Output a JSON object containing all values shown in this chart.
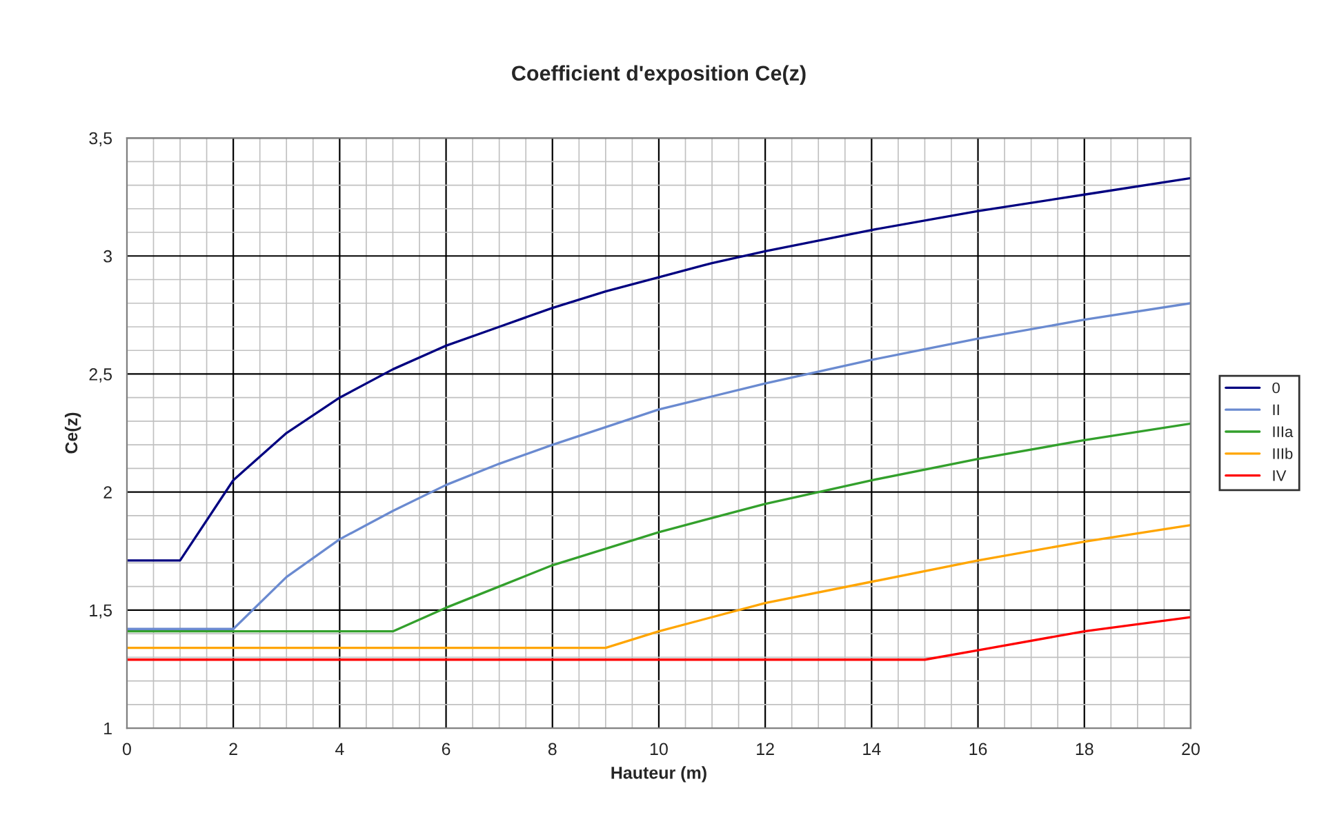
{
  "chart_data": {
    "type": "line",
    "title": "Coefficient d'exposition Ce(z)",
    "xlabel": "Hauteur (m)",
    "ylabel": "Ce(z)",
    "xlim": [
      0,
      20
    ],
    "xticks": [
      0,
      2,
      4,
      6,
      8,
      10,
      12,
      14,
      16,
      18,
      20
    ],
    "ylim": [
      1,
      3.5
    ],
    "yticks": [
      1,
      {
        "value": 1.5,
        "label": "1,5"
      },
      2,
      {
        "value": 2.5,
        "label": "2,5"
      },
      3,
      {
        "value": 3.5,
        "label": "3,5"
      }
    ],
    "grid": true,
    "legend": "right",
    "marker": "none",
    "line_style": "solid",
    "series": [
      {
        "name": "0",
        "color": "#000080",
        "x": [
          0,
          1,
          2,
          3,
          4,
          5,
          6,
          7,
          8,
          9,
          10,
          11,
          12,
          14,
          16,
          18,
          20
        ],
        "values": [
          1.71,
          1.71,
          2.05,
          2.25,
          2.4,
          2.52,
          2.62,
          2.7,
          2.78,
          2.85,
          2.91,
          2.97,
          3.02,
          3.11,
          3.19,
          3.26,
          3.33
        ]
      },
      {
        "name": "II",
        "color": "#6a8ad0",
        "x": [
          0,
          2,
          3,
          4,
          5,
          6,
          7,
          8,
          10,
          12,
          14,
          16,
          18,
          20
        ],
        "values": [
          1.42,
          1.42,
          1.64,
          1.8,
          1.92,
          2.03,
          2.12,
          2.2,
          2.35,
          2.46,
          2.56,
          2.65,
          2.73,
          2.8
        ]
      },
      {
        "name": "IIIa",
        "color": "#33a02c",
        "x": [
          0,
          5,
          6,
          7,
          8,
          10,
          12,
          14,
          16,
          18,
          20
        ],
        "values": [
          1.41,
          1.41,
          1.51,
          1.6,
          1.69,
          1.83,
          1.95,
          2.05,
          2.14,
          2.22,
          2.29
        ]
      },
      {
        "name": "IIIb",
        "color": "#ffa500",
        "x": [
          0,
          9,
          10,
          12,
          14,
          16,
          18,
          20
        ],
        "values": [
          1.34,
          1.34,
          1.41,
          1.53,
          1.62,
          1.71,
          1.79,
          1.86
        ]
      },
      {
        "name": "IV",
        "color": "#ff0000",
        "x": [
          0,
          15,
          16,
          18,
          20
        ],
        "values": [
          1.29,
          1.29,
          1.33,
          1.41,
          1.47
        ]
      }
    ]
  }
}
